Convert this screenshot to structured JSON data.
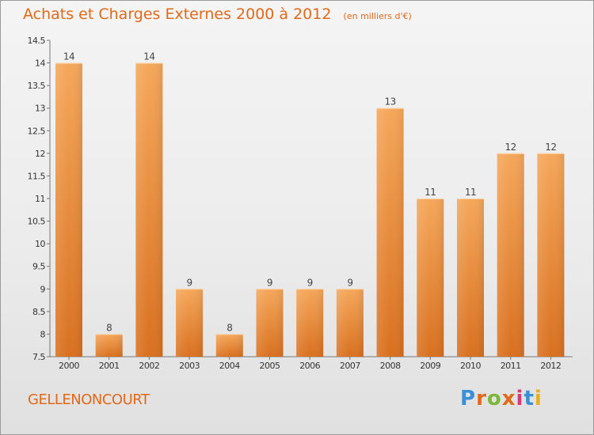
{
  "title": {
    "main": "Achats et Charges Externes 2000 à 2012",
    "unit": "(en milliers d'€)"
  },
  "location": "GELLENONCOURT",
  "logo": {
    "text": "Proxiti",
    "colors": [
      "#3a8fd6",
      "#e0691a",
      "#7ab73a",
      "#e0691a",
      "#d63a7a",
      "#3a8fd6",
      "#e8b020"
    ]
  },
  "colors": {
    "accent": "#e0691a",
    "bar_light": "#f5a75a",
    "bar_dark": "#d9701f"
  },
  "chart_data": {
    "type": "bar",
    "categories": [
      "2000",
      "2001",
      "2002",
      "2003",
      "2004",
      "2005",
      "2006",
      "2007",
      "2008",
      "2009",
      "2010",
      "2011",
      "2012"
    ],
    "values": [
      14,
      8,
      14,
      9,
      8,
      9,
      9,
      9,
      13,
      11,
      11,
      12,
      12
    ],
    "ylim": [
      7.5,
      14.5
    ],
    "yticks": [
      "7.5",
      "8",
      "8.5",
      "9",
      "9.5",
      "10",
      "10.5",
      "11",
      "11.5",
      "12",
      "12.5",
      "13",
      "13.5",
      "14",
      "14.5"
    ],
    "grid": false
  }
}
